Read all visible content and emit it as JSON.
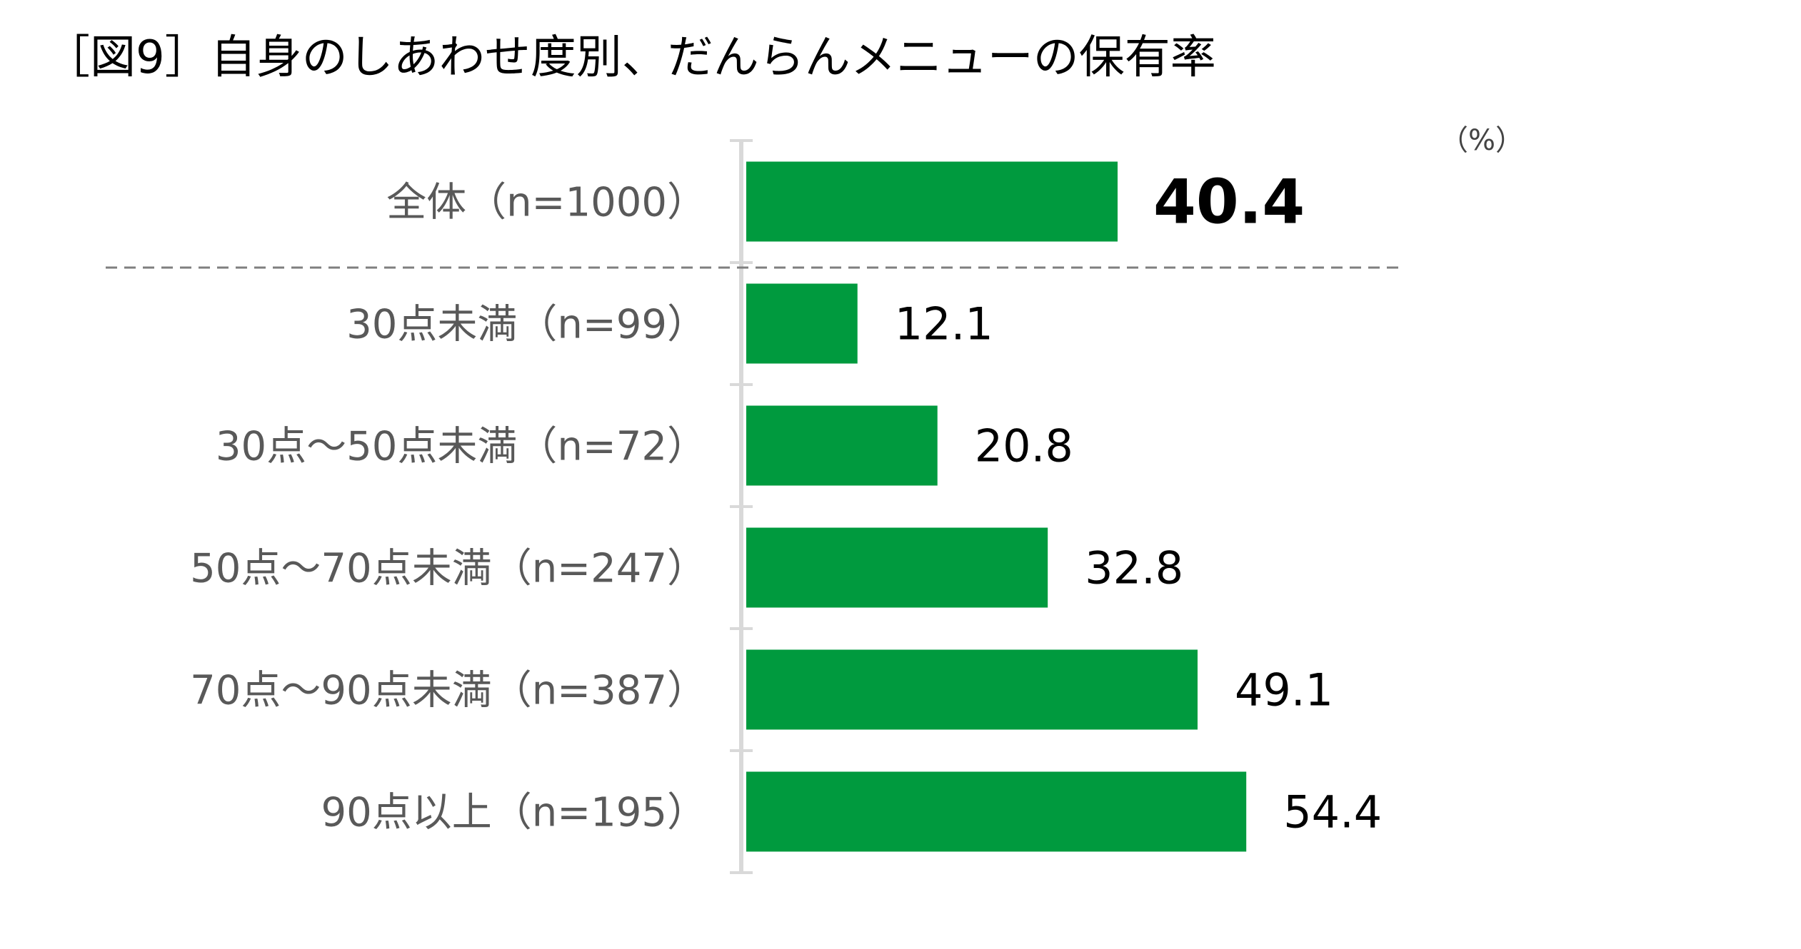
{
  "chart_data": {
    "type": "bar",
    "orientation": "horizontal",
    "title": "［図9］自身のしあわせ度別、だんらんメニューの保有率",
    "unit_label": "（%）",
    "categories": [
      "全体（n=1000）",
      "30点未満（n=99）",
      "30点～50点未満（n=72）",
      "50点～70点未満（n=247）",
      "70点～90点未満（n=387）",
      "90点以上（n=195）"
    ],
    "values": [
      40.4,
      12.1,
      20.8,
      32.8,
      49.1,
      54.4
    ],
    "value_labels": [
      "40.4",
      "12.1",
      "20.8",
      "32.8",
      "49.1",
      "54.4"
    ],
    "xlim": [
      0,
      100
    ],
    "grid": false,
    "legend": "none",
    "separator_after_first": true,
    "colors": {
      "bar": "#009a3e",
      "axis": "#d9d9d9",
      "separator": "#7f7f7f",
      "category_text": "#595959",
      "value_text": "#000000"
    }
  }
}
